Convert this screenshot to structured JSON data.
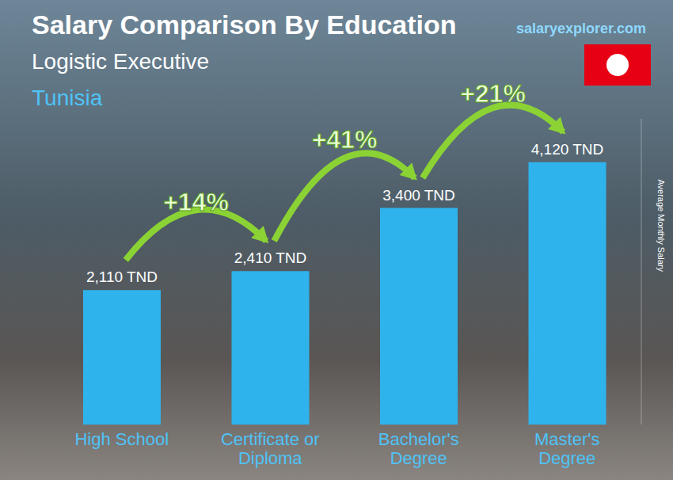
{
  "chart_data": {
    "type": "bar",
    "title": "Salary Comparison By Education",
    "subtitle": "Logistic Executive",
    "region": "Tunisia",
    "watermark": "salaryexplorer.com",
    "y_label": "Average Monthly Salary",
    "categories": [
      "High School",
      "Certificate or Diploma",
      "Bachelor's Degree",
      "Master's Degree"
    ],
    "values": [
      2110,
      2410,
      3400,
      4120
    ],
    "value_labels": [
      "2,110 TND",
      "2,410 TND",
      "3,400 TND",
      "4,120 TND"
    ],
    "data_labels": true,
    "annotations": [
      "+14%",
      "+41%",
      "+21%"
    ],
    "color": "#2fb3ec",
    "ylim": [
      0,
      4800
    ],
    "tick_labels": false,
    "grid": false
  }
}
